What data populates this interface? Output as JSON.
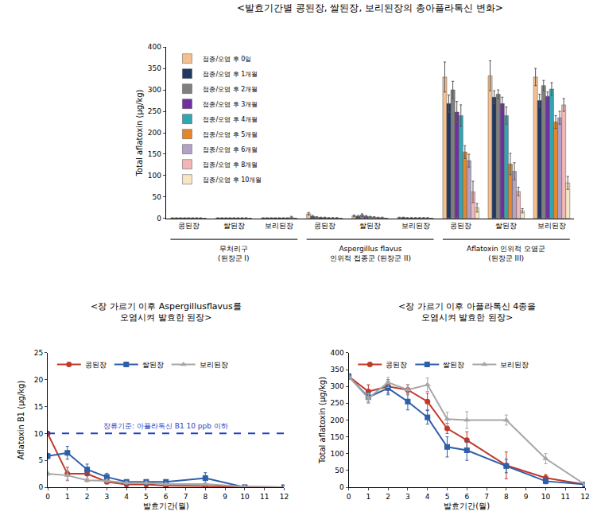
{
  "chart_data": [
    {
      "type": "bar",
      "title": "<발효기간별 콩된장, 쌀된장, 보리된장의 총아플라톡신 변화>",
      "y_label": "Total aflatoxin (μg/kg)",
      "groups": [
        {
          "label": [
            "무처리구",
            "(된장군 I)"
          ],
          "categories": [
            "콩된장",
            "쌀된장",
            "보리된장"
          ]
        },
        {
          "label": [
            "Aspergillus flavus",
            "인위적 접종군 (된장군 II)"
          ],
          "categories": [
            "콩된장",
            "쌀된장",
            "보리된장"
          ]
        },
        {
          "label": [
            "Aflatoxin 인위적 오염군",
            "(된장군 III)"
          ],
          "categories": [
            "콩된장",
            "쌀된장",
            "보리된장"
          ]
        }
      ],
      "series": [
        {
          "name": "접종/오염 후 0일",
          "color": "#f5c08f",
          "values": [
            1,
            1,
            1,
            11,
            6,
            2,
            330,
            333,
            330
          ],
          "errors": [
            0.5,
            0.5,
            0.5,
            3,
            2,
            1,
            35,
            35,
            20
          ]
        },
        {
          "name": "접종/오염 후 1개월",
          "color": "#1f3864",
          "values": [
            1,
            1,
            1,
            5,
            5,
            2,
            268,
            283,
            275
          ],
          "errors": [
            0.5,
            0.5,
            0.5,
            2,
            2,
            1,
            20,
            15,
            15
          ]
        },
        {
          "name": "접종/오염 후 2개월",
          "color": "#7f7f7f",
          "values": [
            1,
            1,
            1,
            3,
            8,
            1,
            300,
            290,
            310
          ],
          "errors": [
            0.5,
            0.5,
            0.5,
            1,
            3,
            1,
            20,
            10,
            12
          ]
        },
        {
          "name": "접종/오염 후 3개월",
          "color": "#7030a0",
          "values": [
            1,
            1,
            1,
            2,
            5,
            1,
            248,
            268,
            285
          ],
          "errors": [
            0.5,
            0.5,
            0.5,
            1,
            2,
            1,
            25,
            15,
            10
          ]
        },
        {
          "name": "접종/오염 후 4개월",
          "color": "#31a5b0",
          "values": [
            1,
            1,
            1,
            2,
            4,
            1,
            240,
            240,
            302
          ],
          "errors": [
            0.5,
            0.5,
            0.5,
            1,
            1,
            1,
            25,
            20,
            15
          ]
        },
        {
          "name": "접종/오염 후 5개월",
          "color": "#e4862c",
          "values": [
            1,
            1,
            1,
            1,
            3,
            1,
            155,
            127,
            225
          ],
          "errors": [
            0.5,
            0.5,
            0.5,
            1,
            1,
            1,
            15,
            25,
            15
          ]
        },
        {
          "name": "접종/오염 후 6개월",
          "color": "#b3a2c7",
          "values": [
            1,
            1,
            1,
            1,
            2,
            1,
            135,
            110,
            235
          ],
          "errors": [
            0.5,
            0.5,
            0.5,
            1,
            1,
            1,
            15,
            20,
            15
          ]
        },
        {
          "name": "접종/오염 후 8개월",
          "color": "#f3b6b8",
          "values": [
            1,
            1,
            3,
            1,
            2,
            1,
            62,
            63,
            265
          ],
          "errors": [
            0.5,
            0.5,
            2,
            1,
            1,
            1,
            25,
            10,
            15
          ]
        },
        {
          "name": "접종/오염 후 10개월",
          "color": "#f7e6c4",
          "values": [
            0,
            0,
            0,
            0,
            0,
            0,
            25,
            18,
            83
          ],
          "errors": [
            0,
            0,
            0,
            0,
            0,
            0,
            10,
            5,
            15
          ]
        }
      ],
      "ylim": [
        0,
        400
      ],
      "yticks": [
        0,
        50,
        100,
        150,
        200,
        250,
        300,
        350,
        400
      ],
      "grid": false,
      "legend": "top left"
    },
    {
      "type": "line",
      "title": "<장 가르기 이후 Aspergillusflavus를\n오염시켜 발효한 된장>",
      "x_label": "발효기간(월)",
      "y_label": "Aflatoxin B1 (μg/kg)",
      "x": [
        0,
        1,
        2,
        3,
        4,
        5,
        6,
        8,
        10,
        12
      ],
      "series": [
        {
          "name": "콩된장",
          "color": "#c0392b",
          "marker": "circle",
          "values": [
            10,
            2.5,
            2.5,
            1,
            0.5,
            0.5,
            0.3,
            0.2,
            0,
            0
          ],
          "errors": [
            0.3,
            1.2,
            1.0,
            0.3,
            0.2,
            0.5,
            0.3,
            0.2,
            0,
            0
          ]
        },
        {
          "name": "쌀된장",
          "color": "#2e5fa8",
          "marker": "square",
          "values": [
            5.8,
            6.4,
            3.3,
            1.9,
            1.0,
            1.0,
            1.0,
            1.7,
            0,
            0
          ],
          "errors": [
            0.5,
            1.2,
            1.0,
            0.7,
            0.3,
            0.3,
            0.4,
            1.0,
            0,
            0
          ]
        },
        {
          "name": "보리된장",
          "color": "#a6a6a6",
          "marker": "triangle-up",
          "values": [
            2.5,
            2.2,
            1.3,
            1.2,
            0.8,
            0.8,
            0.6,
            0.6,
            0.1,
            0
          ],
          "errors": [
            0.3,
            1.0,
            0.3,
            0.3,
            0.2,
            0.2,
            0.2,
            0.3,
            0.1,
            0
          ]
        }
      ],
      "annotations": [
        {
          "text": "장류기준: 아플라톡신 B1 10 ppb 이하",
          "y": 10,
          "color": "#1f3fbf",
          "line_style": "dash"
        }
      ],
      "xlim": [
        0,
        12
      ],
      "xticks": [
        0,
        1,
        2,
        3,
        4,
        5,
        6,
        7,
        8,
        9,
        10,
        11,
        12
      ],
      "ylim": [
        0,
        25
      ],
      "yticks": [
        0,
        5,
        10,
        15,
        20,
        25
      ],
      "grid": false,
      "legend": "top left"
    },
    {
      "type": "line",
      "title": "<장 가르기 이후 아플라톡신 4종을\n오염시켜 발효한 된장>",
      "x_label": "발효기간(월)",
      "y_label": "Total aflatoxin (μg/kg)",
      "x": [
        0,
        1,
        2,
        3,
        4,
        5,
        6,
        8,
        10,
        12
      ],
      "series": [
        {
          "name": "콩된장",
          "color": "#c0392b",
          "marker": "circle",
          "values": [
            330,
            285,
            300,
            290,
            255,
            175,
            140,
            65,
            28,
            8
          ],
          "errors": [
            8,
            20,
            20,
            15,
            25,
            15,
            25,
            40,
            10,
            3
          ]
        },
        {
          "name": "쌀된장",
          "color": "#2e5fa8",
          "marker": "square",
          "values": [
            330,
            268,
            295,
            255,
            208,
            120,
            110,
            63,
            18,
            8
          ],
          "errors": [
            8,
            15,
            20,
            25,
            20,
            30,
            30,
            20,
            8,
            3
          ]
        },
        {
          "name": "보리된장",
          "color": "#a6a6a6",
          "marker": "triangle-up",
          "values": [
            330,
            265,
            312,
            290,
            305,
            203,
            200,
            200,
            85,
            8
          ],
          "errors": [
            8,
            15,
            15,
            15,
            20,
            20,
            25,
            15,
            15,
            3
          ]
        }
      ],
      "xlim": [
        0,
        12
      ],
      "xticks": [
        0,
        1,
        2,
        3,
        4,
        5,
        6,
        7,
        8,
        9,
        10,
        11,
        12
      ],
      "ylim": [
        0,
        400
      ],
      "yticks": [
        0,
        50,
        100,
        150,
        200,
        250,
        300,
        350,
        400
      ],
      "grid": false,
      "legend": "top left"
    }
  ]
}
